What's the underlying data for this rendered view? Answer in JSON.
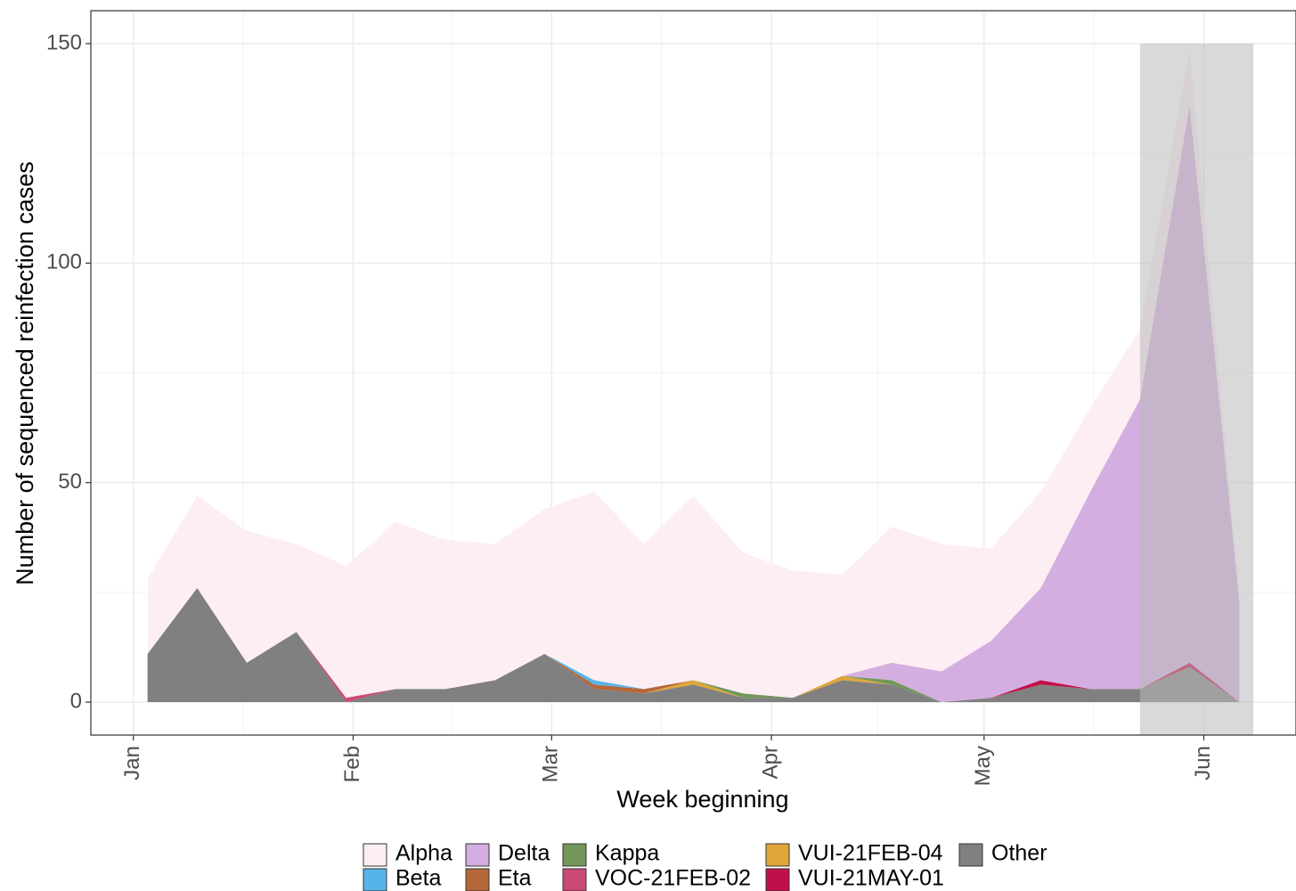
{
  "chart_data": {
    "type": "stacked_area",
    "x_label": "Week beginning",
    "y_label": "Number of sequenced reinfection cases",
    "x": [
      2,
      9,
      16,
      23,
      30,
      37,
      44,
      51,
      58,
      65,
      72,
      79,
      86,
      93,
      100,
      107,
      114,
      121,
      128,
      135,
      142,
      149,
      156
    ],
    "xlim": [
      -6,
      164
    ],
    "xticks": [
      {
        "value": 0,
        "label": "Jan"
      },
      {
        "value": 31,
        "label": "Feb"
      },
      {
        "value": 59,
        "label": "Mar"
      },
      {
        "value": 90,
        "label": "Apr"
      },
      {
        "value": 120,
        "label": "May"
      },
      {
        "value": 151,
        "label": "Jun"
      }
    ],
    "ylim": [
      -7.5,
      157.5
    ],
    "yticks": [
      0,
      50,
      100,
      150
    ],
    "grid": true,
    "shaded_region": {
      "xmin": 142,
      "xmax": 158,
      "ymax": 150,
      "color": "#bababa"
    },
    "series": [
      {
        "name": "Alpha",
        "color": "#fdeef3",
        "values": [
          17,
          21,
          30,
          20,
          30,
          38,
          34,
          31,
          33,
          43,
          33,
          42,
          32,
          29,
          23,
          31,
          29,
          21,
          22,
          19,
          16,
          13,
          1
        ]
      },
      {
        "name": "Beta",
        "color": "#56b4e9",
        "values": [
          0,
          0,
          0,
          0,
          0,
          0,
          0,
          0,
          0,
          1,
          0,
          0,
          0,
          0,
          0,
          0,
          0,
          0,
          0,
          0,
          0,
          0,
          0
        ]
      },
      {
        "name": "Delta",
        "color": "#d4aee0",
        "values": [
          0,
          0,
          0,
          0,
          0,
          0,
          0,
          0,
          0,
          0,
          0,
          0,
          0,
          0,
          0,
          4,
          7,
          13,
          21,
          45,
          66,
          127,
          23
        ]
      },
      {
        "name": "Eta",
        "color": "#b5673a",
        "values": [
          0,
          0,
          0,
          0,
          0,
          0,
          0,
          0,
          0,
          1,
          1,
          0,
          0,
          0,
          0,
          0,
          0,
          0,
          0,
          0,
          0,
          0,
          0
        ]
      },
      {
        "name": "Kappa",
        "color": "#73975a",
        "values": [
          0,
          0,
          0,
          0,
          0,
          0,
          0,
          0,
          0,
          0,
          0,
          0,
          1,
          0,
          0,
          1,
          0,
          0,
          0,
          0,
          0,
          0,
          0
        ]
      },
      {
        "name": "VOC-21FEB-02",
        "color": "#c94a73",
        "values": [
          0,
          0,
          0,
          0,
          1,
          0,
          0,
          0,
          0,
          0,
          0,
          0,
          0,
          0,
          0,
          0,
          0,
          0,
          0,
          0,
          0,
          0,
          0
        ]
      },
      {
        "name": "VUI-21FEB-04",
        "color": "#e0a63a",
        "values": [
          0,
          0,
          0,
          0,
          0,
          0,
          0,
          0,
          0,
          0,
          0,
          1,
          0,
          0,
          1,
          0,
          0,
          0,
          0,
          0,
          0,
          0,
          0
        ]
      },
      {
        "name": "VUI-21MAY-01",
        "color": "#c0104a",
        "values": [
          0,
          0,
          0,
          0,
          0,
          0,
          0,
          0,
          0,
          0,
          0,
          0,
          0,
          0,
          0,
          0,
          0,
          0,
          1,
          0,
          0,
          1,
          0
        ]
      },
      {
        "name": "Other",
        "color": "#808080",
        "values": [
          11,
          26,
          9,
          16,
          0,
          3,
          3,
          5,
          11,
          3,
          2,
          4,
          1,
          1,
          5,
          4,
          0,
          1,
          4,
          3,
          3,
          8,
          0
        ]
      }
    ]
  }
}
